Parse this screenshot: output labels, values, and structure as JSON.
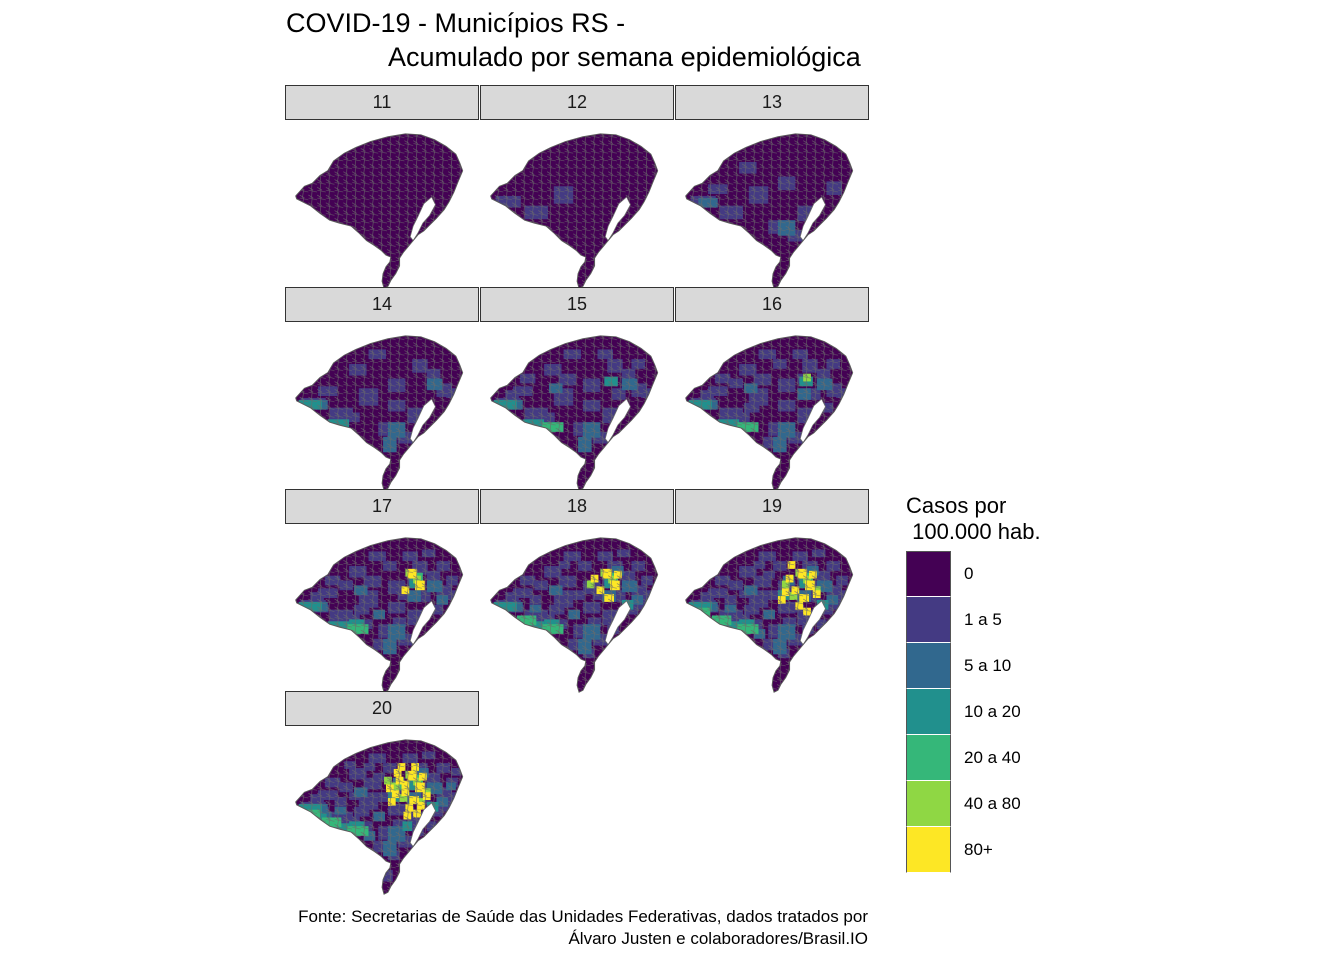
{
  "chart_data": {
    "type": "choropleth-facets",
    "title_line1": "COVID-19 - Municípios RS -",
    "title_line2": "Acumulado por semana epidemiológica",
    "facets": [
      {
        "week": "11",
        "counts": {
          "1 a 5": 0,
          "5 a 10": 0,
          "10 a 20": 0,
          "20 a 40": 0,
          "40 a 80": 0,
          "80+": 0
        }
      },
      {
        "week": "12",
        "counts": {
          "1 a 5": 3,
          "5 a 10": 0,
          "10 a 20": 0,
          "20 a 40": 0,
          "40 a 80": 0,
          "80+": 0
        }
      },
      {
        "week": "13",
        "counts": {
          "1 a 5": 10,
          "5 a 10": 2,
          "10 a 20": 0,
          "20 a 40": 0,
          "40 a 80": 0,
          "80+": 0
        }
      },
      {
        "week": "14",
        "counts": {
          "1 a 5": 16,
          "5 a 10": 4,
          "10 a 20": 2,
          "20 a 40": 0,
          "40 a 80": 0,
          "80+": 0
        }
      },
      {
        "week": "15",
        "counts": {
          "1 a 5": 22,
          "5 a 10": 5,
          "10 a 20": 3,
          "20 a 40": 1,
          "40 a 80": 0,
          "80+": 0
        }
      },
      {
        "week": "16",
        "counts": {
          "1 a 5": 28,
          "5 a 10": 6,
          "10 a 20": 3,
          "20 a 40": 1,
          "40 a 80": 1,
          "80+": 0
        }
      },
      {
        "week": "17",
        "counts": {
          "1 a 5": 34,
          "5 a 10": 8,
          "10 a 20": 4,
          "20 a 40": 2,
          "40 a 80": 2,
          "80+": 3
        }
      },
      {
        "week": "18",
        "counts": {
          "1 a 5": 40,
          "5 a 10": 10,
          "10 a 20": 5,
          "20 a 40": 3,
          "40 a 80": 3,
          "80+": 6
        }
      },
      {
        "week": "19",
        "counts": {
          "1 a 5": 46,
          "5 a 10": 12,
          "10 a 20": 6,
          "20 a 40": 4,
          "40 a 80": 5,
          "80+": 12
        }
      },
      {
        "week": "20",
        "counts": {
          "1 a 5": 50,
          "5 a 10": 14,
          "10 a 20": 8,
          "20 a 40": 5,
          "40 a 80": 7,
          "80+": 18
        }
      }
    ],
    "legend": {
      "title": "Casos por\n 100.000 hab.",
      "position": "right",
      "classes": [
        {
          "label": "0",
          "color": "#440154"
        },
        {
          "label": "1 a 5",
          "color": "#443a83"
        },
        {
          "label": "5 a 10",
          "color": "#31688e"
        },
        {
          "label": "10 a 20",
          "color": "#21908d"
        },
        {
          "label": "20 a 40",
          "color": "#35b779"
        },
        {
          "label": "40 a 80",
          "color": "#8fd744"
        },
        {
          "label": "80+",
          "color": "#fde725"
        }
      ]
    },
    "caption_line1": "Fonte: Secretarias de Saúde das Unidades Federativas, dados tratados por",
    "caption_line2": "Álvaro Justen e colaboradores/Brasil.IO"
  }
}
